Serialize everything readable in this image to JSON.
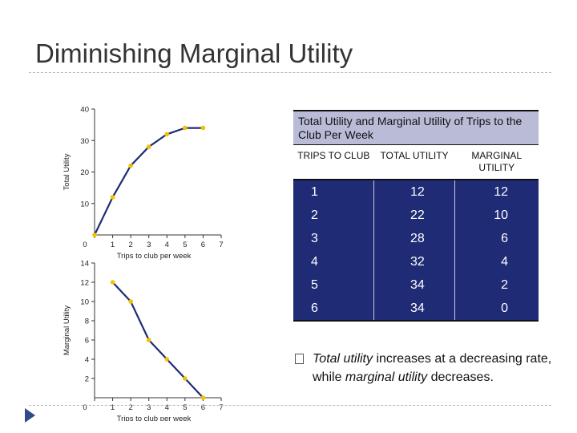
{
  "slide": {
    "title": "Diminishing Marginal Utility"
  },
  "chart_data": [
    {
      "type": "line",
      "x": [
        0,
        1,
        2,
        3,
        4,
        5,
        6
      ],
      "values": [
        0,
        12,
        22,
        28,
        32,
        34,
        34
      ],
      "xlabel": "Trips to club per week",
      "ylabel": "Total Utility",
      "xlim": [
        0,
        7
      ],
      "ylim": [
        0,
        40
      ],
      "xticks": [
        "0",
        "1",
        "2",
        "3",
        "4",
        "5",
        "6",
        "7"
      ],
      "yticks": [
        "10",
        "20",
        "30",
        "40"
      ],
      "line_color": "#1f2b75",
      "point_color": "#f2c200"
    },
    {
      "type": "line",
      "x": [
        1,
        2,
        3,
        4,
        5,
        6
      ],
      "values": [
        12,
        10,
        6,
        4,
        2,
        0
      ],
      "xlabel": "Trips to club per week",
      "ylabel": "Marginal Utility",
      "xlim": [
        0,
        7
      ],
      "ylim": [
        0,
        14
      ],
      "xticks": [
        "0",
        "1",
        "2",
        "3",
        "4",
        "5",
        "6",
        "7"
      ],
      "yticks": [
        "2",
        "4",
        "6",
        "8",
        "10",
        "12",
        "14"
      ],
      "line_color": "#1f2b75",
      "point_color": "#f2c200"
    }
  ],
  "table": {
    "caption": "Total Utility and Marginal Utility of Trips to the Club Per Week",
    "headers": [
      "TRIPS TO CLUB",
      "TOTAL UTILITY",
      "MARGINAL UTILITY"
    ],
    "rows": [
      [
        "1",
        "12",
        "12"
      ],
      [
        "2",
        "22",
        "10"
      ],
      [
        "3",
        "28",
        "6"
      ],
      [
        "4",
        "32",
        "4"
      ],
      [
        "5",
        "34",
        "2"
      ],
      [
        "6",
        "34",
        "0"
      ]
    ]
  },
  "bullet": {
    "em1": "Total utility",
    "text1": " increases at a decreasing rate, while ",
    "em2": "marginal utility",
    "text2": " decreases."
  }
}
